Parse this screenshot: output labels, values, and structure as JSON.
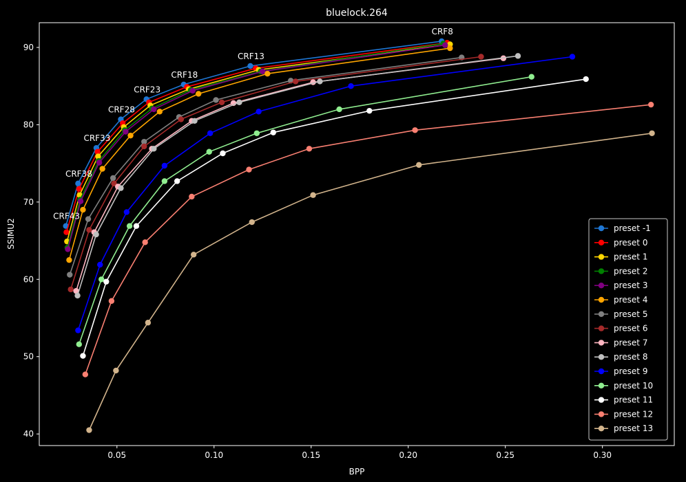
{
  "chart_data": {
    "type": "line",
    "title": "bluelock.264",
    "xlabel": "BPP",
    "ylabel": "SSIMU2",
    "xlim": [
      0.01,
      0.337
    ],
    "ylim": [
      38.5,
      93.2
    ],
    "x_ticks": [
      0.05,
      0.1,
      0.15,
      0.2,
      0.25,
      0.3
    ],
    "x_tick_labels": [
      "0.05",
      "0.10",
      "0.15",
      "0.20",
      "0.25",
      "0.30"
    ],
    "y_ticks": [
      40,
      50,
      60,
      70,
      80,
      90
    ],
    "y_tick_labels": [
      "40",
      "50",
      "60",
      "70",
      "80",
      "90"
    ],
    "grid": false,
    "legend_position": "bottom-right",
    "background": "#000000",
    "annotations": [
      {
        "text": "CRF8",
        "x": 0.2172,
        "y": 90.8
      },
      {
        "text": "CRF13",
        "x": 0.1187,
        "y": 87.6
      },
      {
        "text": "CRF18",
        "x": 0.0844,
        "y": 85.2
      },
      {
        "text": "CRF23",
        "x": 0.0652,
        "y": 83.3
      },
      {
        "text": "CRF28",
        "x": 0.052,
        "y": 80.7
      },
      {
        "text": "CRF33",
        "x": 0.0394,
        "y": 77.0
      },
      {
        "text": "CRF38",
        "x": 0.03,
        "y": 72.4
      },
      {
        "text": "CRF43",
        "x": 0.0237,
        "y": 66.9
      }
    ],
    "series": [
      {
        "name": "preset -1",
        "color": "#1f77d4",
        "x": [
          0.0237,
          0.03,
          0.0394,
          0.052,
          0.0652,
          0.0844,
          0.1187,
          0.2172
        ],
        "y": [
          66.9,
          72.4,
          77.0,
          80.7,
          83.3,
          85.2,
          87.6,
          90.8
        ]
      },
      {
        "name": "preset 0",
        "color": "#ff0000",
        "x": [
          0.024,
          0.0305,
          0.04,
          0.053,
          0.0665,
          0.086,
          0.1215,
          0.22
        ],
        "y": [
          66.1,
          71.7,
          76.5,
          80.2,
          82.9,
          84.9,
          87.3,
          90.6
        ]
      },
      {
        "name": "preset 1",
        "color": "#ffd700",
        "x": [
          0.0243,
          0.0308,
          0.0403,
          0.0535,
          0.0672,
          0.087,
          0.123,
          0.2215
        ],
        "y": [
          64.9,
          70.9,
          75.9,
          79.7,
          82.5,
          84.6,
          87.1,
          90.4
        ]
      },
      {
        "name": "preset 2",
        "color": "#008000",
        "x": [
          0.0245,
          0.031,
          0.0406,
          0.054,
          0.068,
          0.088,
          0.124,
          0.218
        ],
        "y": [
          64.1,
          70.3,
          75.3,
          79.3,
          82.1,
          84.5,
          86.9,
          90.5
        ]
      },
      {
        "name": "preset 3",
        "color": "#800080",
        "x": [
          0.0247,
          0.0313,
          0.0409,
          0.0545,
          0.069,
          0.089,
          0.125,
          0.219
        ],
        "y": [
          63.9,
          70.1,
          75.1,
          79.1,
          82.0,
          84.4,
          86.9,
          90.3
        ]
      },
      {
        "name": "preset 4",
        "color": "#ffa500",
        "x": [
          0.0254,
          0.0325,
          0.0425,
          0.057,
          0.072,
          0.092,
          0.1275,
          0.2215
        ],
        "y": [
          62.5,
          69.0,
          74.3,
          78.6,
          81.7,
          84.0,
          86.6,
          89.9
        ]
      },
      {
        "name": "preset 5",
        "color": "#808080",
        "x": [
          0.0257,
          0.0352,
          0.048,
          0.064,
          0.082,
          0.101,
          0.1395,
          0.2275
        ],
        "y": [
          60.6,
          67.8,
          73.1,
          77.8,
          81.0,
          83.2,
          85.7,
          88.7
        ]
      },
      {
        "name": "preset 6",
        "color": "#a52a2a",
        "x": [
          0.0262,
          0.0357,
          0.0485,
          0.064,
          0.083,
          0.104,
          0.142,
          0.2375
        ],
        "y": [
          58.7,
          66.4,
          72.4,
          77.2,
          80.7,
          82.9,
          85.6,
          88.8
        ]
      },
      {
        "name": "preset 7",
        "color": "#ffb6c1",
        "x": [
          0.029,
          0.0383,
          0.0505,
          0.068,
          0.0885,
          0.11,
          0.151,
          0.249
        ],
        "y": [
          58.5,
          66.1,
          72.0,
          76.9,
          80.5,
          82.8,
          85.5,
          88.6
        ]
      },
      {
        "name": "preset 8",
        "color": "#c0c0c0",
        "x": [
          0.0297,
          0.0393,
          0.052,
          0.069,
          0.09,
          0.113,
          0.1545,
          0.2565
        ],
        "y": [
          57.9,
          65.8,
          71.8,
          76.9,
          80.5,
          82.9,
          85.6,
          88.9
        ]
      },
      {
        "name": "preset 9",
        "color": "#0000ff",
        "x": [
          0.03,
          0.0413,
          0.055,
          0.0745,
          0.098,
          0.123,
          0.1705,
          0.2845
        ],
        "y": [
          53.4,
          61.9,
          68.7,
          74.7,
          78.9,
          81.7,
          85.0,
          88.8
        ]
      },
      {
        "name": "preset 10",
        "color": "#90ee90",
        "x": [
          0.0305,
          0.042,
          0.0565,
          0.0745,
          0.0975,
          0.122,
          0.1645,
          0.2635
        ],
        "y": [
          51.6,
          60.0,
          66.9,
          72.7,
          76.5,
          78.9,
          82.0,
          86.2
        ]
      },
      {
        "name": "preset 11",
        "color": "#ffffff",
        "x": [
          0.0325,
          0.0445,
          0.06,
          0.081,
          0.1045,
          0.1305,
          0.18,
          0.2915
        ],
        "y": [
          50.1,
          59.7,
          66.9,
          72.7,
          76.3,
          79.0,
          81.8,
          85.9
        ]
      },
      {
        "name": "preset 12",
        "color": "#fa8072",
        "x": [
          0.0337,
          0.0472,
          0.0645,
          0.0885,
          0.118,
          0.149,
          0.2035,
          0.325
        ],
        "y": [
          47.7,
          57.2,
          64.8,
          70.7,
          74.2,
          76.9,
          79.3,
          82.6
        ]
      },
      {
        "name": "preset 13",
        "color": "#d2b48c",
        "x": [
          0.0357,
          0.0495,
          0.066,
          0.0895,
          0.1195,
          0.151,
          0.2055,
          0.3255
        ],
        "y": [
          40.5,
          48.2,
          54.4,
          63.2,
          67.4,
          70.9,
          74.8,
          78.9
        ]
      }
    ]
  }
}
